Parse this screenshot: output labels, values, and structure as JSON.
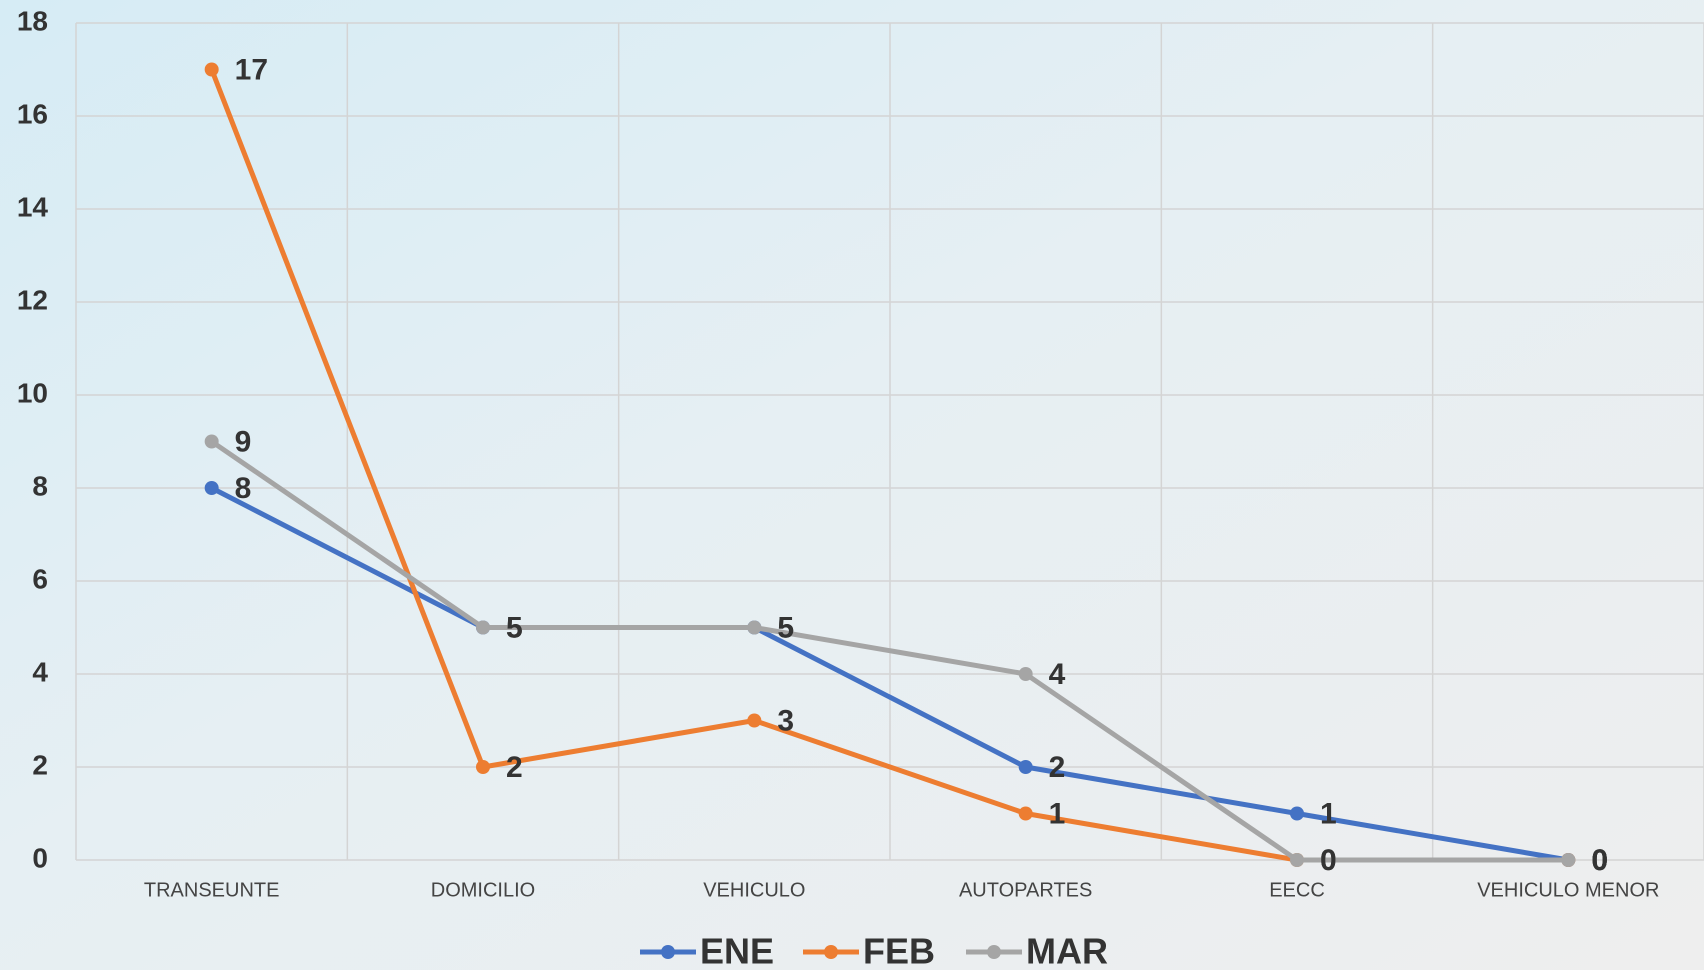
{
  "chart_data": {
    "type": "line",
    "categories": [
      "TRANSEUNTE",
      "DOMICILIO",
      "VEHICULO",
      "AUTOPARTES",
      "EECC",
      "VEHICULO MENOR"
    ],
    "series": [
      {
        "name": "ENE",
        "color": "#4472c4",
        "values": [
          8,
          5,
          5,
          2,
          1,
          0
        ]
      },
      {
        "name": "FEB",
        "color": "#ed7d31",
        "values": [
          17,
          2,
          3,
          1,
          0,
          0
        ]
      },
      {
        "name": "MAR",
        "color": "#a5a5a5",
        "values": [
          9,
          5,
          5,
          4,
          0,
          0
        ]
      }
    ],
    "ylim": [
      0,
      18
    ],
    "yticks": [
      0,
      2,
      4,
      6,
      8,
      10,
      12,
      14,
      16,
      18
    ],
    "grid": true,
    "legend": "bottom"
  }
}
